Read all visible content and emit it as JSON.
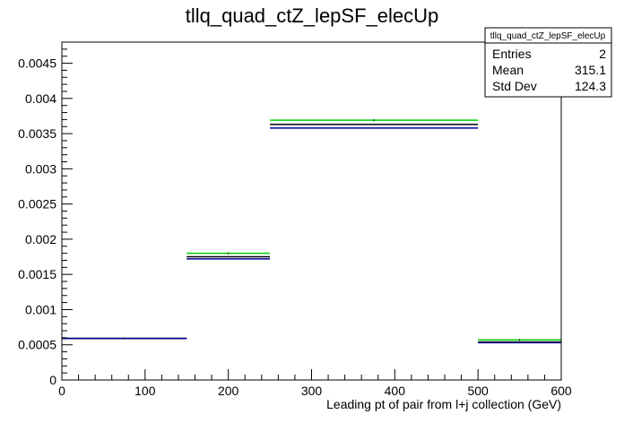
{
  "chart_data": {
    "type": "histogram",
    "title": "tllq_quad_ctZ_lepSF_elecUp",
    "xlabel": "Leading pt of pair from l+j collection (GeV)",
    "ylabel": "",
    "xlim": [
      0,
      600
    ],
    "ylim": [
      0,
      0.0048
    ],
    "grid": false,
    "x_ticks": [
      0,
      100,
      200,
      300,
      400,
      500,
      600
    ],
    "x_tick_labels": [
      "0",
      "100",
      "200",
      "300",
      "400",
      "500",
      "600"
    ],
    "y_ticks": [
      0,
      0.0005,
      0.001,
      0.0015,
      0.002,
      0.0025,
      0.003,
      0.0035,
      0.004,
      0.0045
    ],
    "y_tick_labels": [
      "0",
      "0.0005",
      "0.001",
      "0.0015",
      "0.002",
      "0.0025",
      "0.003",
      "0.0035",
      "0.004",
      "0.0045"
    ],
    "bins": [
      [
        0,
        150
      ],
      [
        150,
        250
      ],
      [
        250,
        500
      ],
      [
        500,
        600
      ]
    ],
    "series": [
      {
        "color": "#00cc00",
        "values": [
          0.00059,
          0.0018,
          0.00369,
          0.00057
        ]
      },
      {
        "color": "#000000",
        "values": [
          0.00059,
          0.00175,
          0.00363,
          0.00054
        ]
      },
      {
        "color": "#000099",
        "values": [
          0.00059,
          0.00172,
          0.00358,
          0.00053
        ]
      }
    ],
    "stats_box": {
      "name": "tllq_quad_ctZ_lepSF_elecUp",
      "rows": [
        {
          "label": "Entries",
          "value": "2"
        },
        {
          "label": "Mean",
          "value": "315.1"
        },
        {
          "label": "Std Dev",
          "value": "124.3"
        }
      ]
    }
  }
}
